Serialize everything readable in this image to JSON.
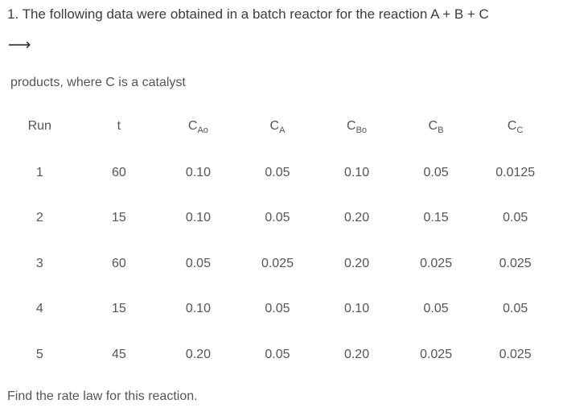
{
  "question": {
    "line1": "1. The following data were obtained in a batch reactor for the reaction A + B + C",
    "arrow": "⟶",
    "line2": "products, where C is a catalyst"
  },
  "table": {
    "columns": [
      {
        "base": "Run",
        "sub": ""
      },
      {
        "base": "t",
        "sub": ""
      },
      {
        "base": "C",
        "sub": "Ao"
      },
      {
        "base": "C",
        "sub": "A"
      },
      {
        "base": "C",
        "sub": "Bo"
      },
      {
        "base": "C",
        "sub": "B"
      },
      {
        "base": "C",
        "sub": "C"
      }
    ],
    "rows": [
      [
        "1",
        "60",
        "0.10",
        "0.05",
        "0.10",
        "0.05",
        "0.0125"
      ],
      [
        "2",
        "15",
        "0.10",
        "0.05",
        "0.20",
        "0.15",
        "0.05"
      ],
      [
        "3",
        "60",
        "0.05",
        "0.025",
        "0.20",
        "0.025",
        "0.025"
      ],
      [
        "4",
        "15",
        "0.10",
        "0.05",
        "0.10",
        "0.05",
        "0.05"
      ],
      [
        "5",
        "45",
        "0.20",
        "0.05",
        "0.20",
        "0.025",
        "0.025"
      ]
    ]
  },
  "prompt": "Find the rate law for this reaction."
}
